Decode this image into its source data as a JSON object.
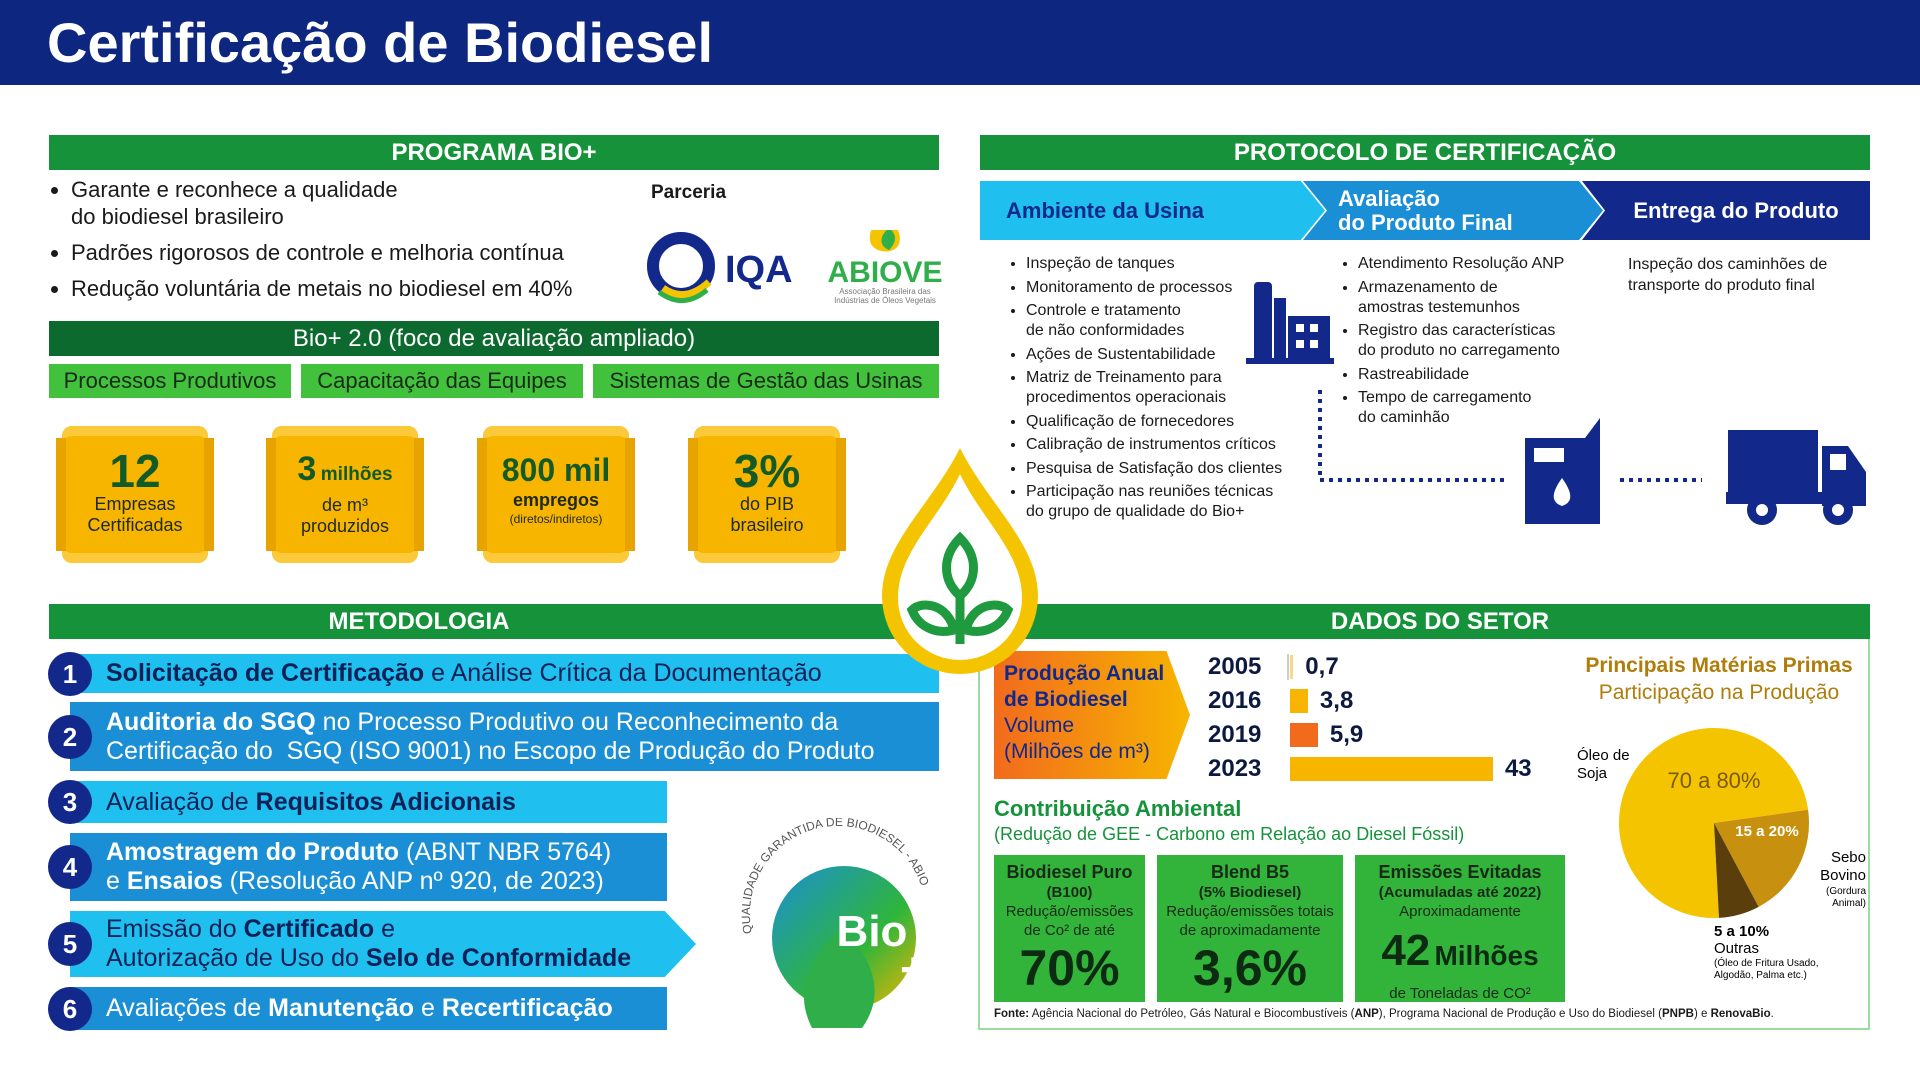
{
  "header": {
    "title": "Certificação de Biodiesel"
  },
  "programa": {
    "title": "PROGRAMA BIO+",
    "bullets": [
      [
        "Garante e reconhece a qualidade",
        "do biodiesel brasileiro"
      ],
      "Padrões rigorosos de controle e melhoria contínua",
      "Redução voluntária de metais no biodiesel em 40%"
    ],
    "parceria": "Parceria",
    "logos": {
      "iqa": "IQA",
      "abiove": "ABIOVE",
      "abiove_tagline": [
        "Associação Brasileira das",
        "Indústrias de Óleos Vegetais"
      ]
    },
    "bio2": "Bio+ 2.0 (foco de avaliação ampliado)",
    "areas": [
      "Processos Produtivos",
      "Capacitação das Equipes",
      "Sistemas de Gestão das Usinas"
    ],
    "stats": [
      {
        "value": "12",
        "lines": [
          "Empresas",
          "Certificadas"
        ]
      },
      {
        "value": "3",
        "unit": "milhões",
        "lines": [
          "de m³",
          "produzidos"
        ]
      },
      {
        "value": "800 mil",
        "lines": [
          "empregos",
          "(diretos/indiretos)"
        ]
      },
      {
        "value": "3%",
        "lines": [
          "do PIB",
          "brasileiro"
        ]
      }
    ]
  },
  "metodologia": {
    "title": "METODOLOGIA",
    "steps": [
      {
        "number": "1",
        "lines": [
          [
            "Solicitação de Certificação",
            " e Análise Crítica da Documentação"
          ]
        ]
      },
      {
        "number": "2",
        "lines": [
          [
            "Auditoria do SGQ",
            " no Processo Produtivo ou Reconhecimento da"
          ],
          [
            "Certificação do  SGQ (ISO 9001) no Escopo de Produção do Produto"
          ]
        ]
      },
      {
        "number": "3",
        "lines": [
          [
            "Avaliação de ",
            "Requisitos Adicionais"
          ]
        ]
      },
      {
        "number": "4",
        "lines": [
          [
            "Amostragem do Produto",
            " (ABNT NBR 5764)"
          ],
          [
            "e ",
            "Ensaios",
            " (Resolução ANP nº 920, de 2023)"
          ]
        ]
      },
      {
        "number": "5",
        "lines": [
          [
            "Emissão do ",
            "Certificado",
            " e"
          ],
          [
            "Autorização de Uso do ",
            "Selo de Conformidade"
          ]
        ]
      },
      {
        "number": "6",
        "lines": [
          [
            "Avaliações de ",
            "Manutenção",
            " e ",
            "Recertificação"
          ]
        ]
      }
    ],
    "seal": {
      "ring": "QUALIDADE GARANTIDA DE BIODIESEL - ABIOVE",
      "mark": "Bio",
      "plus": "+"
    }
  },
  "protocolo": {
    "title": "PROTOCOLO DE CERTIFICAÇÃO",
    "columns": [
      {
        "title": "Ambiente da Usina",
        "items": [
          "Inspeção de tanques",
          "Monitoramento de processos",
          [
            "Controle e tratamento",
            "de não conformidades"
          ],
          "Ações de Sustentabilidade",
          [
            "Matriz de Treinamento para",
            "procedimentos operacionais"
          ],
          "Qualificação de fornecedores",
          "Calibração de instrumentos críticos",
          "Pesquisa de Satisfação dos clientes",
          [
            "Participação nas reuniões técnicas",
            "do grupo de qualidade do Bio+"
          ]
        ]
      },
      {
        "title": [
          "Avaliação",
          "do Produto Final"
        ],
        "items": [
          "Atendimento Resolução ANP",
          [
            "Armazenamento de",
            "amostras testemunhos"
          ],
          [
            "Registro das características",
            "do produto no carregamento"
          ],
          "Rastreabilidade",
          [
            "Tempo de carregamento",
            "do caminhão"
          ]
        ]
      },
      {
        "title": "Entrega do Produto",
        "text": [
          "Inspeção dos caminhões de",
          "transporte do produto final"
        ]
      }
    ]
  },
  "dados": {
    "title": "DADOS DO SETOR",
    "producao": {
      "title": [
        "Produção Anual",
        "de Biodiesel"
      ],
      "subtitle": [
        "Volume",
        "(Milhões de m³)"
      ],
      "categories": [
        "2005",
        "2016",
        "2019",
        "2023"
      ],
      "values": [
        0.7,
        3.8,
        5.9,
        43
      ],
      "value_labels": [
        "0,7",
        "3,8",
        "5,9",
        "43"
      ],
      "colors": [
        "#f5d98a",
        "#f7b500",
        "#f26b1d",
        "#f7b500"
      ]
    },
    "contribuicao": {
      "title": "Contribuição Ambiental",
      "subtitle": "(Redução de GEE - Carbono em Relação ao Diesel Fóssil)",
      "boxes": [
        {
          "title": [
            "Biodiesel Puro",
            "(B100)"
          ],
          "text": [
            "Redução/emissões",
            "de Co² de até"
          ],
          "value": "70%"
        },
        {
          "title": [
            "Blend B5",
            "(5% Biodiesel)"
          ],
          "text": [
            "Redução/emissões totais",
            "de aproximadamente"
          ],
          "value": "3,6%"
        },
        {
          "title": [
            "Emissões Evitadas",
            "(Acumuladas até 2022)"
          ],
          "text": [
            "Aproximadamente"
          ],
          "value": "42",
          "unit": "Milhões",
          "footer": "de Toneladas de CO²"
        }
      ]
    },
    "materias": {
      "title": "Principais Matérias Primas",
      "subtitle": "Participação na Produção",
      "slices": [
        {
          "label": "70 a 80%",
          "name": [
            "Óleo de",
            "Soja"
          ],
          "color": "#f5c400"
        },
        {
          "label": "15 a 20%",
          "name": [
            "Sebo",
            "Bovino"
          ],
          "note": [
            "(Gordura",
            "Animal)"
          ],
          "color": "#c8900f"
        },
        {
          "label": "5 a 10%",
          "name": [
            "Outras"
          ],
          "note": [
            "(Óleo de Fritura Usado,",
            "Algodão, Palma etc.)"
          ],
          "color": "#5a3f0c"
        }
      ]
    },
    "fonte": [
      [
        "Fonte:"
      ],
      [
        " Agência Nacional do Petróleo, Gás Natural e Biocombustíveis ("
      ],
      [
        "ANP"
      ],
      [
        "), Programa Nacional de Produção e Uso do Biodiesel ("
      ],
      [
        "PNPB"
      ],
      [
        ") e "
      ],
      [
        "RenovaBio"
      ],
      [
        "."
      ]
    ]
  }
}
